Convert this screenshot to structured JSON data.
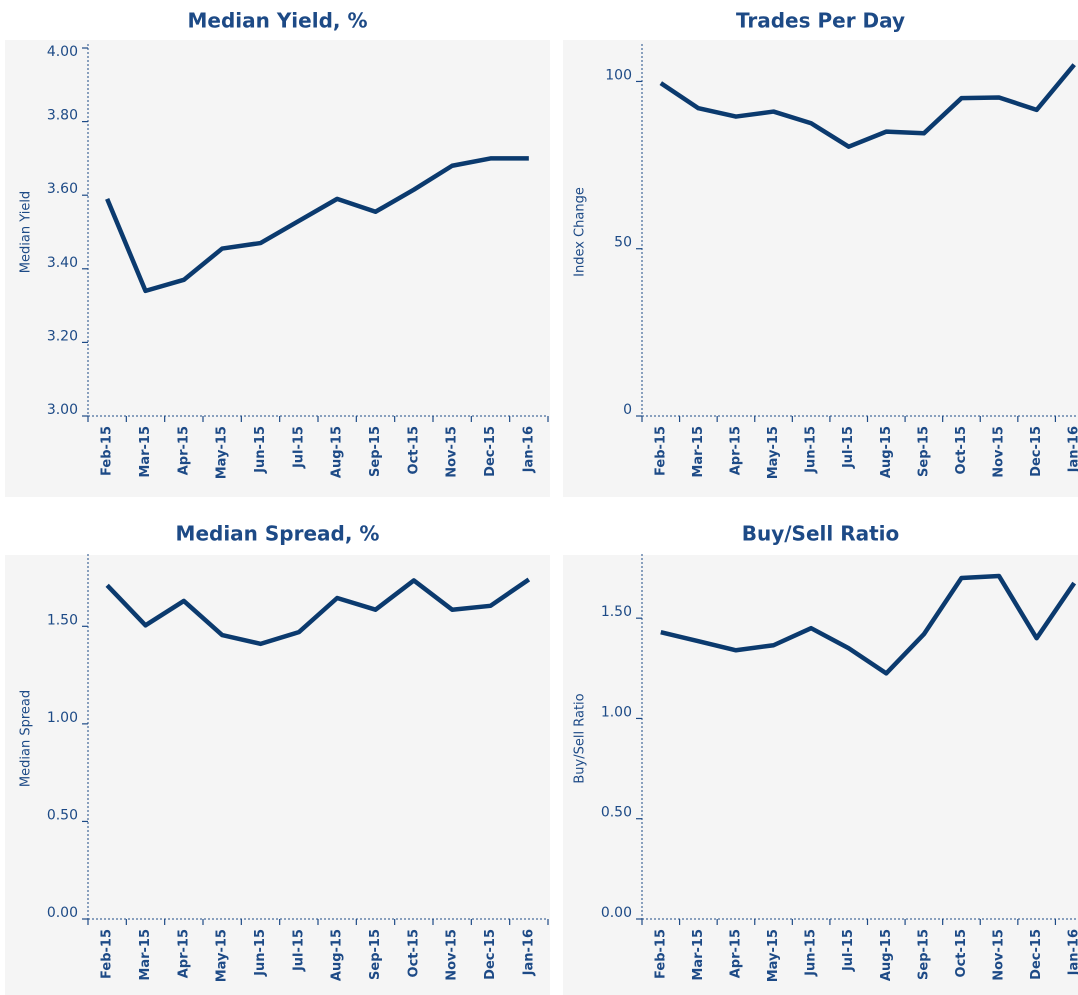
{
  "chart_data": [
    {
      "type": "line",
      "title": "Median Yield, %",
      "y_label": "Median Yield",
      "categories": [
        "Feb-15",
        "Mar-15",
        "Apr-15",
        "May-15",
        "Jun-15",
        "Jul-15",
        "Aug-15",
        "Sep-15",
        "Oct-15",
        "Nov-15",
        "Dec-15",
        "Jan-16"
      ],
      "values": [
        3.59,
        3.34,
        3.37,
        3.455,
        3.47,
        3.53,
        3.59,
        3.555,
        3.615,
        3.68,
        3.7,
        3.7
      ],
      "color": "#0b3a6e",
      "ylim": [
        3.0,
        4.0
      ],
      "yticks": [
        {
          "value": 3.0,
          "label": "3.00"
        },
        {
          "value": 3.2,
          "label": "3.20"
        },
        {
          "value": 3.4,
          "label": "3.40"
        },
        {
          "value": 3.6,
          "label": "3.60"
        },
        {
          "value": 3.8,
          "label": "3.80"
        },
        {
          "value": 4.0,
          "label": "4.00"
        }
      ]
    },
    {
      "type": "line",
      "title": "Trades Per Day",
      "y_label": "Index Change",
      "categories": [
        "Feb-15",
        "Mar-15",
        "Apr-15",
        "May-15",
        "Jun-15",
        "Jul-15",
        "Aug-15",
        "Sep-15",
        "Oct-15",
        "Nov-15",
        "Dec-15",
        "Jan-16"
      ],
      "values": [
        99.5,
        92,
        89.5,
        91,
        87.5,
        80.5,
        85,
        84.5,
        95,
        95.2,
        91.5,
        105
      ],
      "color": "#0b3a6e",
      "ylim": [
        0,
        110
      ],
      "yticks": [
        0,
        50,
        100
      ]
    },
    {
      "type": "line",
      "title": "Median Spread, %",
      "y_label": "Median Spread",
      "categories": [
        "Feb-15",
        "Mar-15",
        "Apr-15",
        "May-15",
        "Jun-15",
        "Jul-15",
        "Aug-15",
        "Sep-15",
        "Oct-15",
        "Nov-15",
        "Dec-15",
        "Jan-16"
      ],
      "values": [
        1.71,
        1.505,
        1.63,
        1.455,
        1.41,
        1.47,
        1.645,
        1.585,
        1.735,
        1.585,
        1.605,
        1.74
      ],
      "color": "#0b3a6e",
      "ylim": [
        0,
        1.85
      ],
      "yticks": [
        {
          "value": 0,
          "label": "0.00"
        },
        {
          "value": 0.5,
          "label": "0.50"
        },
        {
          "value": 1.0,
          "label": "1.00"
        },
        {
          "value": 1.5,
          "label": "1.50"
        }
      ]
    },
    {
      "type": "line",
      "title": "Buy/Sell Ratio",
      "y_label": "Buy/Sell Ratio",
      "categories": [
        "Feb-15",
        "Mar-15",
        "Apr-15",
        "May-15",
        "Jun-15",
        "Jul-15",
        "Aug-15",
        "Sep-15",
        "Oct-15",
        "Nov-15",
        "Dec-15",
        "Jan-16"
      ],
      "values": [
        1.43,
        1.385,
        1.34,
        1.365,
        1.45,
        1.35,
        1.225,
        1.42,
        1.7,
        1.71,
        1.4,
        1.675
      ],
      "color": "#0b3a6e",
      "ylim": [
        0,
        1.8
      ],
      "yticks": [
        {
          "value": 0,
          "label": "0.00"
        },
        {
          "value": 0.5,
          "label": "0.50"
        },
        {
          "value": 1.0,
          "label": "1.00"
        },
        {
          "value": 1.5,
          "label": "1.50"
        }
      ]
    }
  ]
}
